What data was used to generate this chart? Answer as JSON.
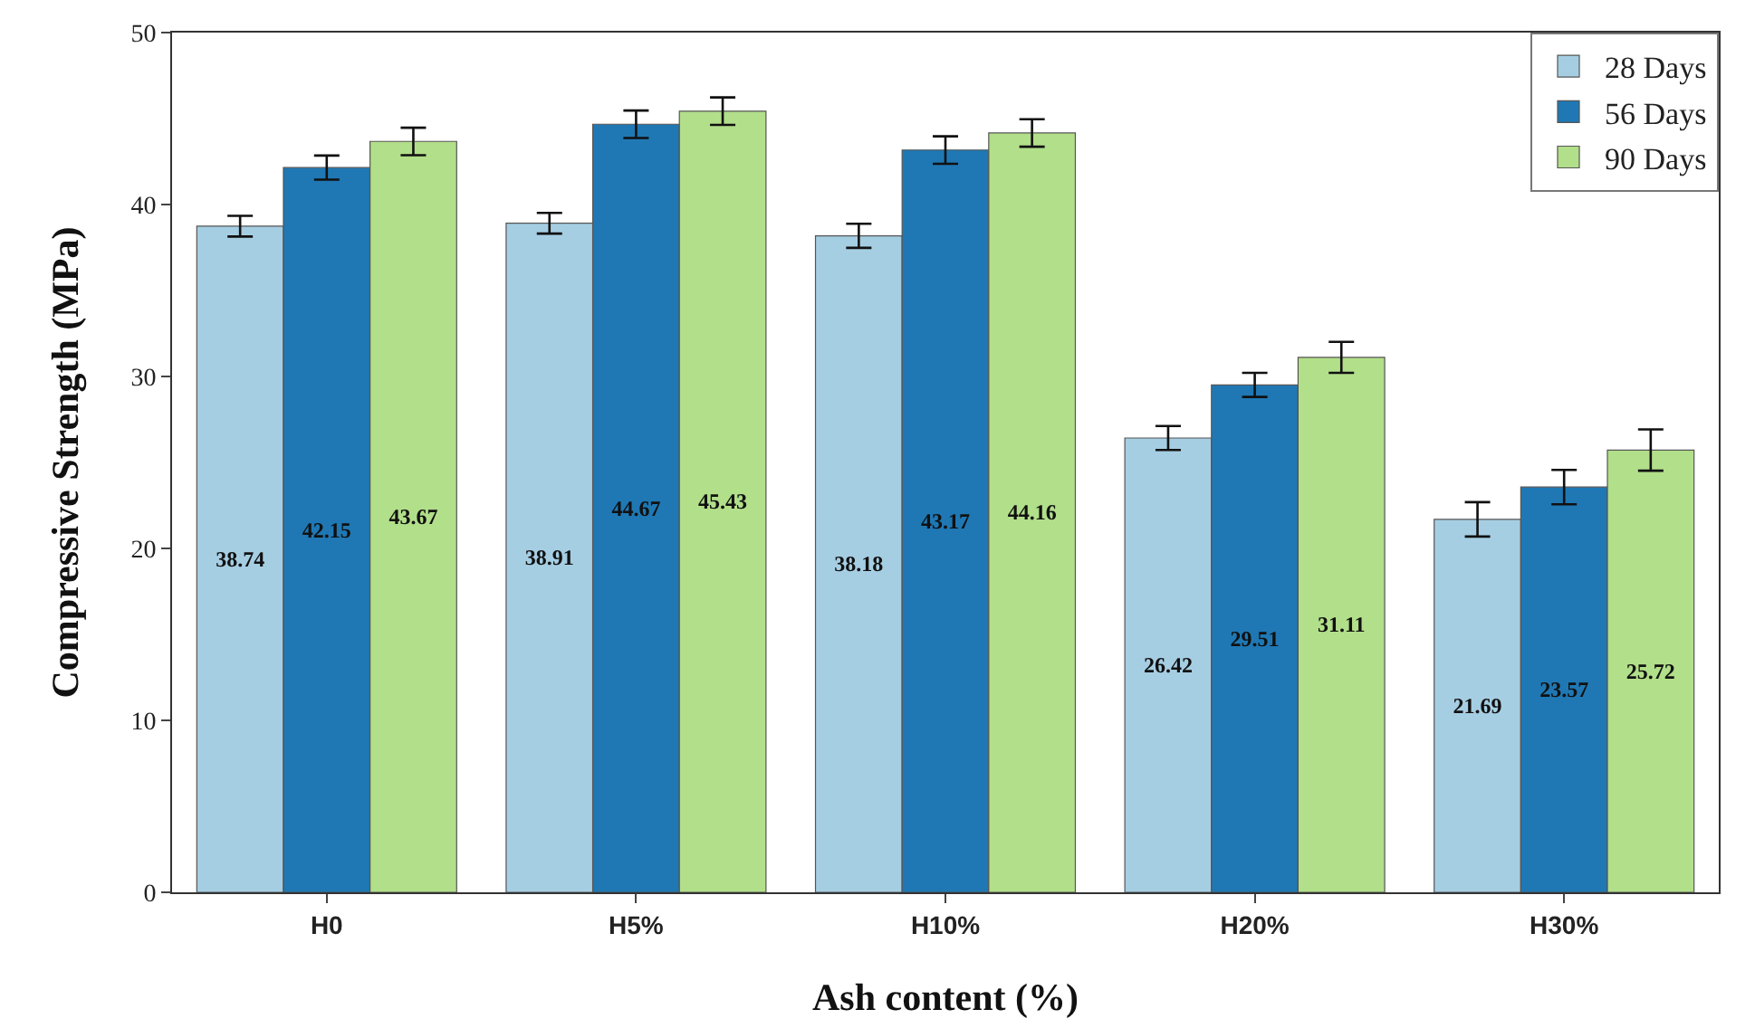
{
  "chart_data": {
    "type": "bar",
    "xlabel": "Ash content (%)",
    "ylabel": "Compressive Strength (MPa)",
    "categories": [
      "H0",
      "H5%",
      "H10%",
      "H20%",
      "H30%"
    ],
    "series": [
      {
        "name": "28 Days",
        "color": "#a6cee3",
        "values": [
          38.74,
          38.91,
          38.18,
          26.42,
          21.69
        ],
        "errors": [
          0.6,
          0.6,
          0.7,
          0.7,
          1.0
        ]
      },
      {
        "name": "56 Days",
        "color": "#1f78b4",
        "values": [
          42.15,
          44.67,
          43.17,
          29.51,
          23.57
        ],
        "errors": [
          0.7,
          0.8,
          0.8,
          0.7,
          1.0
        ]
      },
      {
        "name": "90 Days",
        "color": "#b2df8a",
        "values": [
          43.67,
          45.43,
          44.16,
          31.11,
          25.72
        ],
        "errors": [
          0.8,
          0.8,
          0.8,
          0.9,
          1.2
        ]
      }
    ],
    "ylim": [
      0,
      50
    ],
    "yticks": [
      0,
      10,
      20,
      30,
      40,
      50
    ],
    "grid": false,
    "legend": "top right",
    "data_labels": true
  }
}
